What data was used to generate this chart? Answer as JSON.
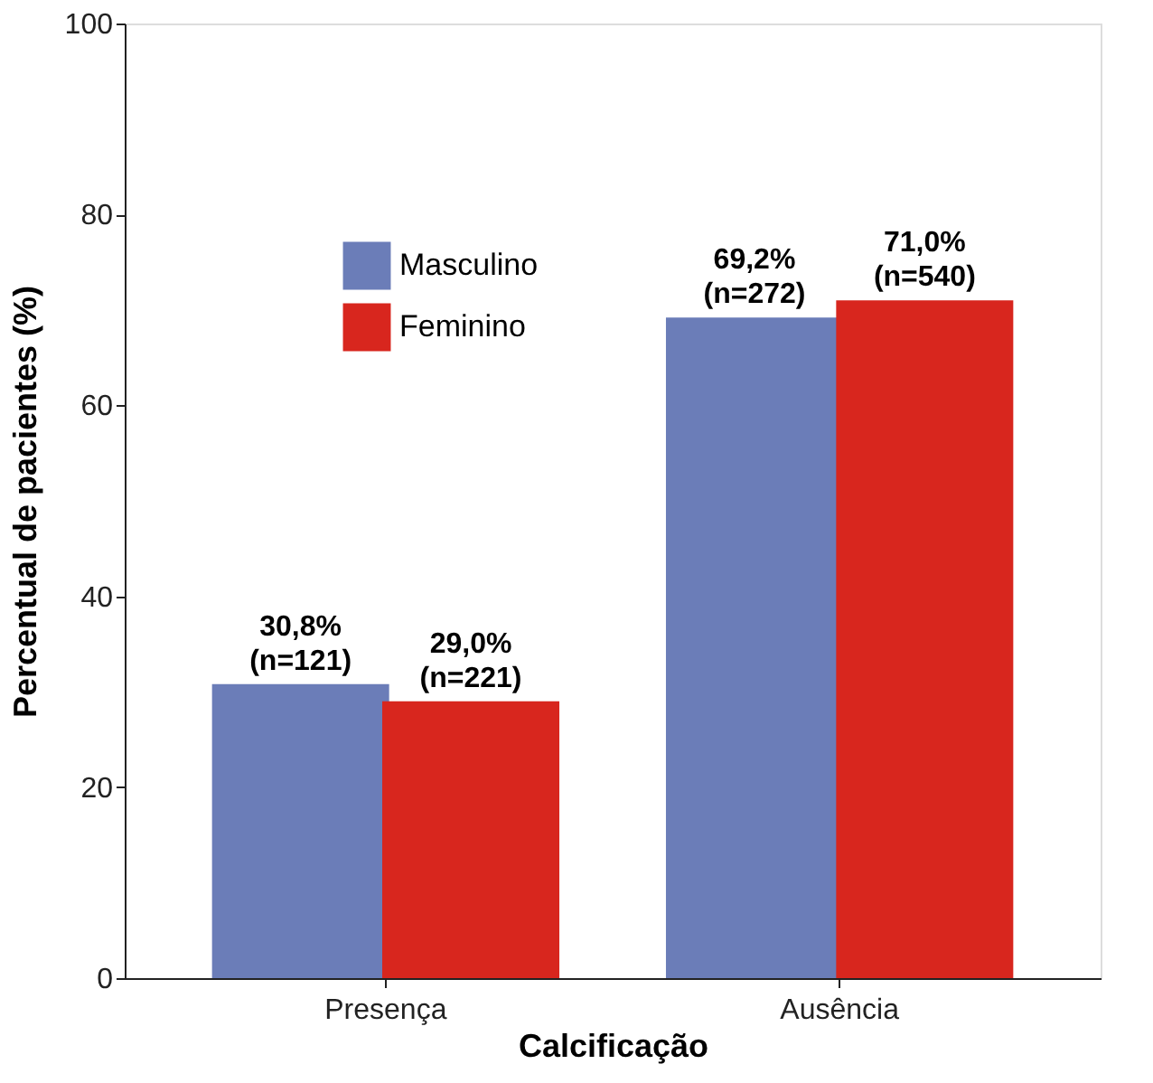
{
  "chart_data": {
    "type": "bar",
    "xlabel": "Calcificação",
    "ylabel": "Percentual de pacientes (%)",
    "categories": [
      "Presença",
      "Ausência"
    ],
    "series": [
      {
        "name": "Masculino",
        "color": "#6b7db8",
        "values": [
          30.8,
          69.2
        ],
        "value_labels": [
          "30,8%\n(n=121)",
          "69,2%\n(n=272)"
        ]
      },
      {
        "name": "Feminino",
        "color": "#d8261e",
        "values": [
          29.0,
          71.0
        ],
        "value_labels": [
          "29,0%\n(n=221)",
          "71,0%\n(n=540)"
        ]
      }
    ],
    "ylim": [
      0,
      100
    ],
    "yticks": [
      0,
      20,
      40,
      60,
      80,
      100
    ],
    "grid": false,
    "legend": "top left"
  }
}
